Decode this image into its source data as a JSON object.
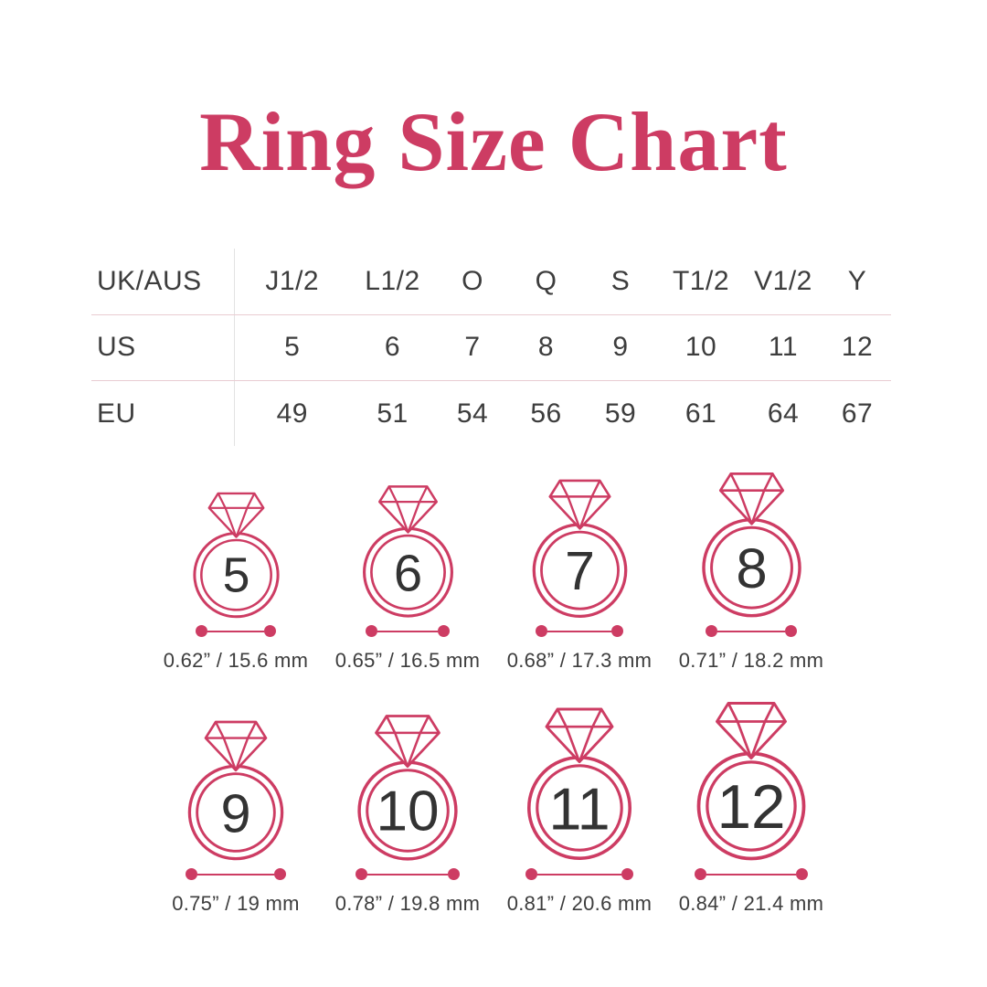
{
  "page": {
    "title": "Ring Size Chart"
  },
  "colors": {
    "accent_pink": "#cd3c63",
    "text_dark": "#3d3d3d",
    "rule_pink": "#e9ccd2",
    "rule_gray": "#e3e3e3",
    "background": "#ffffff"
  },
  "size_table": {
    "rows": [
      {
        "label": "UK/AUS",
        "values": [
          "J1/2",
          "L1/2",
          "O",
          "Q",
          "S",
          "T1/2",
          "V1/2",
          "Y"
        ]
      },
      {
        "label": "US",
        "values": [
          "5",
          "6",
          "7",
          "8",
          "9",
          "10",
          "11",
          "12"
        ]
      },
      {
        "label": "EU",
        "values": [
          "49",
          "51",
          "54",
          "56",
          "59",
          "61",
          "64",
          "67"
        ]
      }
    ]
  },
  "rings": [
    {
      "size": "5",
      "diameter_label": "0.62” / 15.6 mm"
    },
    {
      "size": "6",
      "diameter_label": "0.65” / 16.5 mm"
    },
    {
      "size": "7",
      "diameter_label": "0.68” / 17.3 mm"
    },
    {
      "size": "8",
      "diameter_label": "0.71” / 18.2 mm"
    },
    {
      "size": "9",
      "diameter_label": "0.75” / 19 mm"
    },
    {
      "size": "10",
      "diameter_label": "0.78” / 19.8 mm"
    },
    {
      "size": "11",
      "diameter_label": "0.81” / 20.6 mm"
    },
    {
      "size": "12",
      "diameter_label": "0.84” / 21.4 mm"
    }
  ],
  "chart_data": {
    "type": "table",
    "title": "Ring Size Chart",
    "columns": [
      "UK/AUS",
      "US",
      "EU",
      "diameter_inches",
      "diameter_mm"
    ],
    "rows": [
      [
        "J1/2",
        5,
        49,
        0.62,
        15.6
      ],
      [
        "L1/2",
        6,
        51,
        0.65,
        16.5
      ],
      [
        "O",
        7,
        54,
        0.68,
        17.3
      ],
      [
        "Q",
        8,
        56,
        0.71,
        18.2
      ],
      [
        "S",
        9,
        59,
        0.75,
        19.0
      ],
      [
        "T1/2",
        10,
        61,
        0.78,
        19.8
      ],
      [
        "V1/2",
        11,
        64,
        0.81,
        20.6
      ],
      [
        "Y",
        12,
        67,
        0.84,
        21.4
      ]
    ]
  }
}
